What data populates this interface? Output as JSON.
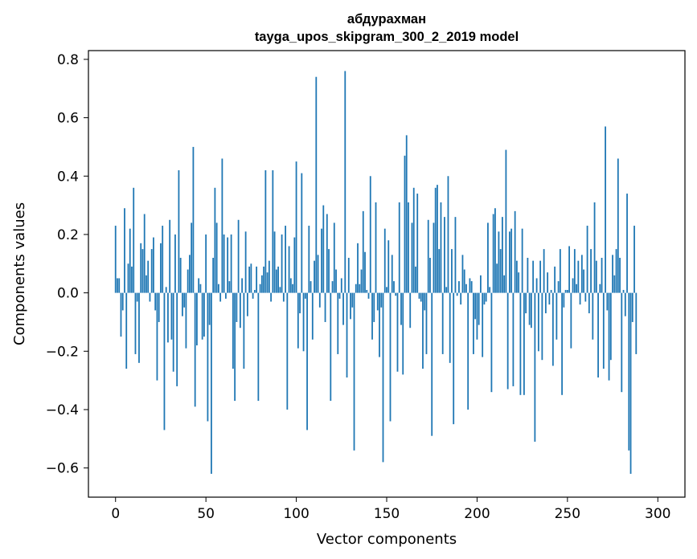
{
  "chart_data": {
    "type": "bar",
    "title": "абдурахман",
    "subtitle": "tayga_upos_skipgram_300_2_2019 model",
    "xlabel": "Vector components",
    "ylabel": "Components values",
    "xlim": [
      -15,
      315
    ],
    "ylim": [
      -0.7,
      0.83
    ],
    "xticks": [
      0,
      50,
      100,
      150,
      200,
      250,
      300
    ],
    "xtick_labels": [
      "0",
      "50",
      "100",
      "150",
      "200",
      "250",
      "300"
    ],
    "yticks": [
      -0.6,
      -0.4,
      -0.2,
      0.0,
      0.2,
      0.4,
      0.6,
      0.8
    ],
    "ytick_labels": [
      "−0.6",
      "−0.4",
      "−0.2",
      "0.0",
      "0.2",
      "0.4",
      "0.6",
      "0.8"
    ],
    "bar_color": "#1f77b4",
    "grid": false,
    "series": [
      {
        "values": [
          0.23,
          0.05,
          0.05,
          -0.15,
          -0.06,
          0.29,
          -0.26,
          0.1,
          0.22,
          0.09,
          0.36,
          -0.21,
          -0.03,
          -0.24,
          0.17,
          0.15,
          0.27,
          0.06,
          0.11,
          -0.03,
          0.15,
          0.19,
          -0.06,
          -0.3,
          -0.1,
          0.17,
          0.23,
          -0.47,
          0.02,
          -0.17,
          0.25,
          -0.16,
          -0.27,
          0.2,
          -0.32,
          0.42,
          0.12,
          -0.08,
          -0.05,
          -0.19,
          0.08,
          0.13,
          0.24,
          0.5,
          -0.39,
          -0.18,
          0.05,
          0.03,
          -0.16,
          -0.15,
          0.2,
          -0.44,
          -0.11,
          -0.62,
          0.12,
          0.36,
          0.24,
          0.03,
          -0.03,
          0.46,
          0.2,
          -0.02,
          0.19,
          0.04,
          0.2,
          -0.26,
          -0.37,
          -0.1,
          0.25,
          -0.12,
          0.05,
          -0.26,
          0.21,
          -0.08,
          0.09,
          0.1,
          -0.02,
          0.01,
          0.09,
          -0.37,
          0.03,
          0.06,
          0.09,
          0.42,
          0.07,
          0.11,
          -0.03,
          0.42,
          0.21,
          0.08,
          0.09,
          0.02,
          0.2,
          -0.03,
          0.23,
          -0.4,
          0.16,
          0.05,
          0.03,
          0.19,
          0.45,
          -0.19,
          -0.07,
          0.41,
          -0.2,
          -0.02,
          -0.47,
          0.23,
          0.04,
          -0.16,
          0.11,
          0.74,
          0.13,
          -0.05,
          0.22,
          0.3,
          -0.1,
          0.27,
          0.15,
          -0.37,
          0.04,
          0.24,
          0.08,
          -0.21,
          -0.02,
          0.05,
          -0.11,
          0.76,
          -0.29,
          0.12,
          -0.09,
          -0.05,
          -0.54,
          0.03,
          0.17,
          0.03,
          0.08,
          0.28,
          0.14,
          0.01,
          -0.02,
          0.4,
          -0.16,
          -0.1,
          0.31,
          -0.06,
          -0.22,
          -0.05,
          -0.58,
          0.22,
          0.02,
          0.18,
          -0.44,
          0.13,
          0.04,
          -0.01,
          -0.27,
          0.31,
          -0.11,
          -0.28,
          0.47,
          0.54,
          0.31,
          -0.12,
          0.24,
          0.36,
          0.09,
          0.34,
          -0.02,
          -0.03,
          -0.26,
          -0.06,
          -0.21,
          0.25,
          0.12,
          -0.49,
          0.24,
          0.36,
          0.37,
          0.15,
          0.31,
          -0.21,
          0.26,
          0.02,
          0.4,
          -0.24,
          0.15,
          -0.45,
          0.26,
          -0.01,
          0.04,
          -0.04,
          0.13,
          0.08,
          0.03,
          -0.4,
          0.05,
          0.04,
          -0.21,
          -0.09,
          -0.16,
          -0.11,
          0.06,
          -0.22,
          -0.04,
          -0.03,
          0.24,
          0.02,
          -0.34,
          0.27,
          0.29,
          0.1,
          0.21,
          0.15,
          0.26,
          0.06,
          0.49,
          -0.33,
          0.21,
          0.22,
          -0.32,
          0.28,
          0.11,
          0.07,
          -0.35,
          0.22,
          -0.35,
          -0.07,
          0.12,
          -0.11,
          -0.12,
          0.11,
          -0.51,
          0.05,
          -0.2,
          0.11,
          -0.23,
          0.15,
          -0.07,
          0.07,
          -0.04,
          0.01,
          -0.25,
          0.09,
          -0.16,
          0.04,
          0.15,
          -0.35,
          -0.05,
          0.01,
          0.01,
          0.16,
          -0.19,
          0.05,
          0.15,
          0.03,
          0.11,
          -0.04,
          0.13,
          0.08,
          -0.03,
          0.23,
          -0.07,
          0.15,
          -0.16,
          0.31,
          0.11,
          -0.29,
          0.03,
          0.12,
          -0.26,
          0.57,
          -0.06,
          -0.3,
          -0.23,
          0.13,
          0.06,
          0.15,
          0.46,
          0.12,
          -0.34,
          0.01,
          -0.08,
          0.34,
          -0.54,
          -0.62,
          -0.1,
          0.23,
          -0.21
        ]
      }
    ]
  }
}
